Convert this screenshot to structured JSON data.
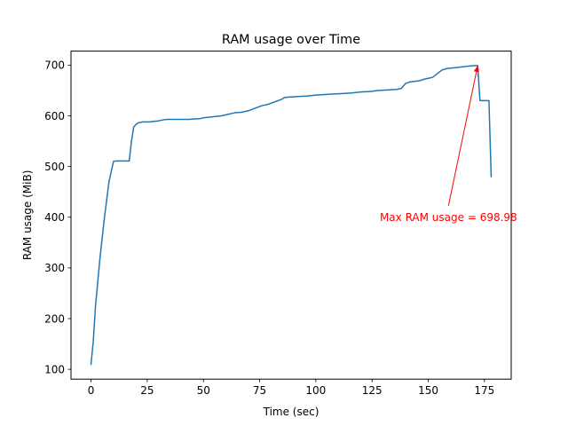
{
  "chart_data": {
    "type": "line",
    "title": "RAM usage over Time",
    "xlabel": "Time (sec)",
    "ylabel": "RAM usage (MiB)",
    "xlim": [
      -8.9,
      186.9
    ],
    "ylim": [
      80.6,
      727.6
    ],
    "x_ticks": [
      0,
      25,
      50,
      75,
      100,
      125,
      150,
      175
    ],
    "y_ticks": [
      100,
      200,
      300,
      400,
      500,
      600,
      700
    ],
    "grid": false,
    "legend": "none",
    "colors": {
      "line": "#1f77b4",
      "annotation": "#ff0000",
      "axes": "#000000"
    },
    "series": [
      {
        "x": [
          0,
          1,
          2,
          4,
          6,
          8,
          10,
          11,
          14,
          17,
          18,
          19,
          20,
          21,
          23,
          26,
          28,
          30,
          32,
          34,
          36,
          40,
          44,
          46,
          48,
          50,
          54,
          58,
          61,
          64,
          67,
          70,
          73,
          76,
          79,
          82,
          85,
          86,
          88,
          92,
          96,
          100,
          104,
          108,
          112,
          116,
          120,
          124,
          128,
          132,
          136,
          138,
          140,
          142,
          144,
          146,
          148,
          150,
          152,
          154,
          156,
          158,
          160,
          162,
          164,
          166,
          168,
          170,
          172,
          173,
          175,
          176,
          177,
          178
        ],
        "y": [
          110,
          155,
          225,
          320,
          400,
          470,
          510,
          511,
          511,
          511,
          550,
          578,
          583,
          586,
          588,
          588,
          589,
          590,
          592,
          593,
          593,
          593,
          593,
          594,
          594,
          596,
          598,
          600,
          603,
          606,
          607,
          610,
          615,
          620,
          623,
          628,
          633,
          636,
          637,
          638,
          639,
          641,
          642,
          643,
          644,
          645,
          647,
          648,
          650,
          651,
          652,
          654,
          664,
          667,
          668,
          669,
          672,
          674,
          676,
          683,
          690,
          693,
          694,
          695,
          696,
          697,
          698,
          698.98,
          698.98,
          630,
          630,
          630,
          630,
          480
        ]
      }
    ],
    "annotations": [
      {
        "text": "Max RAM usage = 698.98",
        "xy": [
          172,
          698.98
        ],
        "xytext": [
          159,
          400
        ]
      }
    ]
  }
}
